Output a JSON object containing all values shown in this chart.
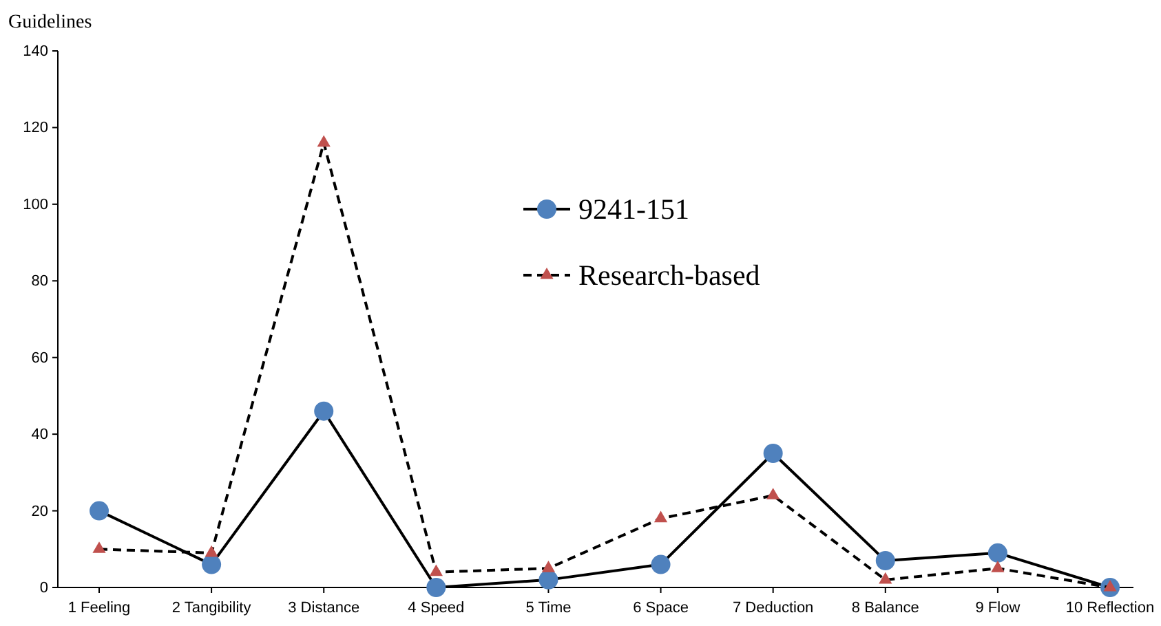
{
  "chart_data": {
    "type": "line",
    "ylabel": "Guidelines",
    "categories": [
      "1 Feeling",
      "2 Tangibility",
      "3 Distance",
      "4 Speed",
      "5 Time",
      "6 Space",
      "7 Deduction",
      "8 Balance",
      "9 Flow",
      "10 Reflection"
    ],
    "series": [
      {
        "name": "9241-151",
        "color": "#000000",
        "values": [
          20,
          6,
          46,
          0,
          2,
          6,
          35,
          7,
          9,
          0
        ],
        "marker": "circle",
        "line_style": "solid"
      },
      {
        "name": "Research-based",
        "color": "#000000",
        "values": [
          10,
          9,
          116,
          4,
          5,
          18,
          24,
          2,
          5,
          0
        ],
        "marker": "triangle",
        "line_style": "dashed"
      }
    ],
    "ylim": [
      0,
      140
    ],
    "yticks": [
      0,
      20,
      40,
      60,
      80,
      100,
      120,
      140
    ],
    "grid": false,
    "legend": "top"
  }
}
